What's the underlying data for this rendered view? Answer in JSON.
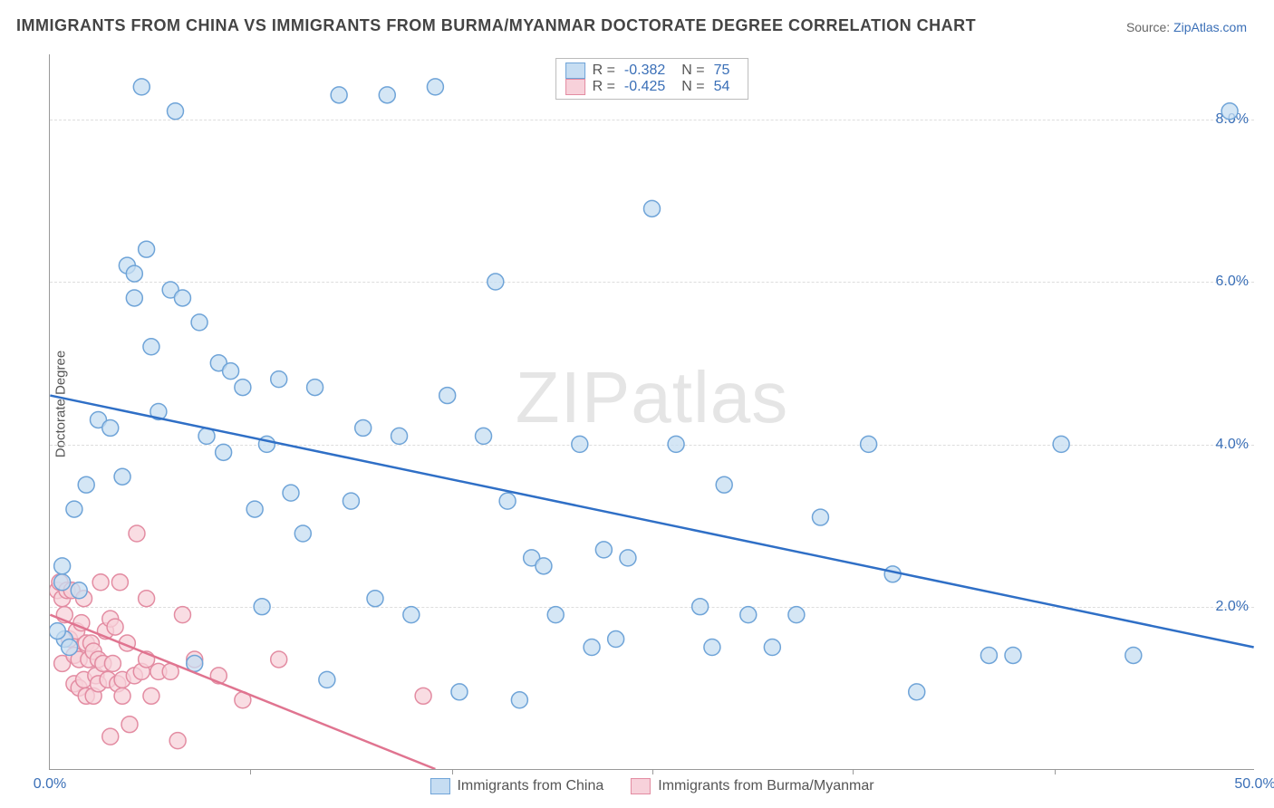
{
  "title": "IMMIGRANTS FROM CHINA VS IMMIGRANTS FROM BURMA/MYANMAR DOCTORATE DEGREE CORRELATION CHART",
  "source_label": "Source: ",
  "source_site": "ZipAtlas.com",
  "watermark_a": "ZIP",
  "watermark_b": "atlas",
  "chart": {
    "type": "scatter",
    "ylabel": "Doctorate Degree",
    "xlim": [
      0,
      50
    ],
    "ylim": [
      0,
      8.8
    ],
    "xticks": [
      0,
      50
    ],
    "xtick_labels": [
      "0.0%",
      "50.0%"
    ],
    "xtick_marks": [
      8.3,
      16.7,
      25,
      33.3,
      41.7
    ],
    "yticks": [
      2,
      4,
      6,
      8
    ],
    "ytick_labels": [
      "2.0%",
      "4.0%",
      "6.0%",
      "8.0%"
    ],
    "background": "#ffffff",
    "grid_color": "#dddddd",
    "axis_color": "#999999",
    "series": [
      {
        "name": "Immigrants from China",
        "color_fill": "#c6ddf2",
        "color_stroke": "#6fa4d8",
        "legend_swatch_fill": "#c6ddf2",
        "legend_swatch_stroke": "#6fa4d8",
        "line_color": "#2f6fc6",
        "line_width": 2.5,
        "R": "-0.382",
        "N": "75",
        "regression": {
          "x1": 0,
          "y1": 4.6,
          "x2": 50,
          "y2": 1.5
        },
        "marker_r": 9,
        "points": [
          [
            0.5,
            2.5
          ],
          [
            0.5,
            2.3
          ],
          [
            0.6,
            1.6
          ],
          [
            0.8,
            1.5
          ],
          [
            1,
            3.2
          ],
          [
            1.2,
            2.2
          ],
          [
            1.5,
            3.5
          ],
          [
            2,
            4.3
          ],
          [
            2.5,
            4.2
          ],
          [
            3,
            3.6
          ],
          [
            3.2,
            6.2
          ],
          [
            3.5,
            5.8
          ],
          [
            3.8,
            8.4
          ],
          [
            4,
            6.4
          ],
          [
            4.2,
            5.2
          ],
          [
            4.5,
            4.4
          ],
          [
            5,
            5.9
          ],
          [
            5.2,
            8.1
          ],
          [
            5.5,
            5.8
          ],
          [
            6,
            1.3
          ],
          [
            6.2,
            5.5
          ],
          [
            6.5,
            4.1
          ],
          [
            7,
            5.0
          ],
          [
            7.2,
            3.9
          ],
          [
            7.5,
            4.9
          ],
          [
            8,
            4.7
          ],
          [
            8.5,
            3.2
          ],
          [
            9,
            4.0
          ],
          [
            9.5,
            4.8
          ],
          [
            10,
            3.4
          ],
          [
            10.5,
            2.9
          ],
          [
            11,
            4.7
          ],
          [
            11.5,
            1.1
          ],
          [
            12,
            8.3
          ],
          [
            12.5,
            3.3
          ],
          [
            13,
            4.2
          ],
          [
            13.5,
            2.1
          ],
          [
            14,
            8.3
          ],
          [
            14.5,
            4.1
          ],
          [
            15,
            1.9
          ],
          [
            16,
            8.4
          ],
          [
            16.5,
            4.6
          ],
          [
            17,
            0.95
          ],
          [
            18,
            4.1
          ],
          [
            18.5,
            6.0
          ],
          [
            19,
            3.3
          ],
          [
            19.5,
            0.85
          ],
          [
            20,
            2.6
          ],
          [
            20.5,
            2.5
          ],
          [
            21,
            1.9
          ],
          [
            22,
            4.0
          ],
          [
            22.5,
            1.5
          ],
          [
            23,
            2.7
          ],
          [
            23.5,
            1.6
          ],
          [
            24,
            2.6
          ],
          [
            25,
            6.9
          ],
          [
            26,
            4.0
          ],
          [
            27,
            2.0
          ],
          [
            27.5,
            1.5
          ],
          [
            28,
            3.5
          ],
          [
            29,
            1.9
          ],
          [
            30,
            1.5
          ],
          [
            31,
            1.9
          ],
          [
            32,
            3.1
          ],
          [
            34,
            4.0
          ],
          [
            35,
            2.4
          ],
          [
            36,
            0.95
          ],
          [
            39,
            1.4
          ],
          [
            40,
            1.4
          ],
          [
            42,
            4.0
          ],
          [
            45,
            1.4
          ],
          [
            49,
            8.1
          ],
          [
            3.5,
            6.1
          ],
          [
            8.8,
            2.0
          ],
          [
            0.3,
            1.7
          ]
        ]
      },
      {
        "name": "Immigrants from Burma/Myanmar",
        "color_fill": "#f7d1da",
        "color_stroke": "#e38ca2",
        "legend_swatch_fill": "#f7d1da",
        "legend_swatch_stroke": "#e38ca2",
        "line_color": "#e07490",
        "line_width": 2.5,
        "R": "-0.425",
        "N": "54",
        "regression": {
          "x1": 0,
          "y1": 1.9,
          "x2": 16,
          "y2": 0.0
        },
        "marker_r": 9,
        "points": [
          [
            0.3,
            2.2
          ],
          [
            0.4,
            2.3
          ],
          [
            0.5,
            1.3
          ],
          [
            0.5,
            2.1
          ],
          [
            0.6,
            1.9
          ],
          [
            0.7,
            2.2
          ],
          [
            0.8,
            1.6
          ],
          [
            0.9,
            2.2
          ],
          [
            1.0,
            1.05
          ],
          [
            1.0,
            1.4
          ],
          [
            1.1,
            1.7
          ],
          [
            1.2,
            1.0
          ],
          [
            1.2,
            1.35
          ],
          [
            1.3,
            1.8
          ],
          [
            1.4,
            2.1
          ],
          [
            1.4,
            1.1
          ],
          [
            1.5,
            0.9
          ],
          [
            1.5,
            1.55
          ],
          [
            1.6,
            1.35
          ],
          [
            1.7,
            1.55
          ],
          [
            1.8,
            0.9
          ],
          [
            1.8,
            1.45
          ],
          [
            1.9,
            1.15
          ],
          [
            2.0,
            1.05
          ],
          [
            2.0,
            1.35
          ],
          [
            2.1,
            2.3
          ],
          [
            2.2,
            1.3
          ],
          [
            2.3,
            1.7
          ],
          [
            2.4,
            1.1
          ],
          [
            2.5,
            1.85
          ],
          [
            2.5,
            0.4
          ],
          [
            2.6,
            1.3
          ],
          [
            2.7,
            1.75
          ],
          [
            2.8,
            1.05
          ],
          [
            2.9,
            2.3
          ],
          [
            3.0,
            1.1
          ],
          [
            3.0,
            0.9
          ],
          [
            3.2,
            1.55
          ],
          [
            3.3,
            0.55
          ],
          [
            3.5,
            1.15
          ],
          [
            3.6,
            2.9
          ],
          [
            3.8,
            1.2
          ],
          [
            4.0,
            1.35
          ],
          [
            4.0,
            2.1
          ],
          [
            4.2,
            0.9
          ],
          [
            4.5,
            1.2
          ],
          [
            5.0,
            1.2
          ],
          [
            5.3,
            0.35
          ],
          [
            5.5,
            1.9
          ],
          [
            6.0,
            1.35
          ],
          [
            7.0,
            1.15
          ],
          [
            8.0,
            0.85
          ],
          [
            9.5,
            1.35
          ],
          [
            15.5,
            0.9
          ]
        ]
      }
    ]
  },
  "legend_top_label_R": "R =",
  "legend_top_label_N": "N ="
}
